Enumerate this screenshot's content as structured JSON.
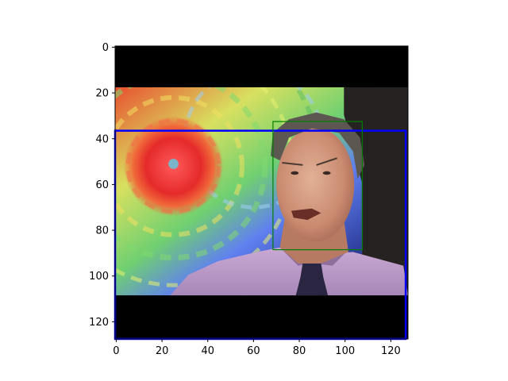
{
  "plot": {
    "x_axis": {
      "range": [
        0,
        127
      ],
      "ticks": [
        0,
        20,
        40,
        60,
        80,
        100,
        120
      ]
    },
    "y_axis": {
      "range": [
        0,
        127
      ],
      "inverted": true,
      "ticks": [
        0,
        20,
        40,
        60,
        80,
        100,
        120
      ]
    },
    "image": {
      "description_tag": "photo-man-in-front-of-storm-radar",
      "letterbox_black_rows": [
        [
          0,
          17
        ],
        [
          109,
          127
        ]
      ]
    },
    "boxes": [
      {
        "name": "blue-bounding-box",
        "color": "#0000ff",
        "x0": 0,
        "y0": 37,
        "x1": 126,
        "y1": 127
      },
      {
        "name": "green-face-box",
        "color": "#008000",
        "x0": 69,
        "y0": 33,
        "x1": 107,
        "y1": 88
      }
    ]
  }
}
